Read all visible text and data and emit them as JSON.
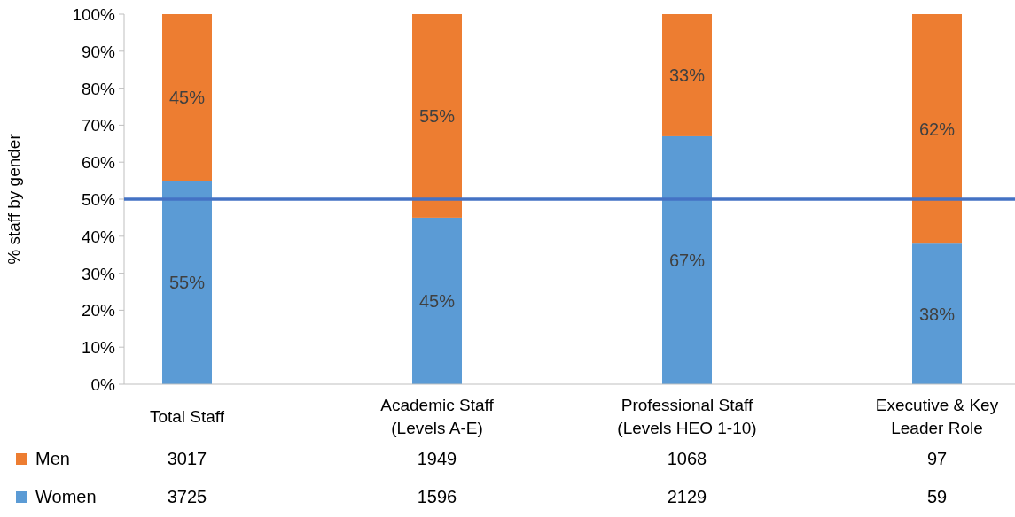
{
  "chart_data": {
    "type": "bar",
    "stacked": true,
    "ylabel": "% staff by gender",
    "categories": [
      "Total Staff",
      "Academic Staff\n(Levels A-E)",
      "Professional Staff\n(Levels HEO 1-10)",
      "Executive & Key\nLeader Role"
    ],
    "series": [
      {
        "name": "Women",
        "color": "#5b9bd5",
        "values": [
          55,
          45,
          67,
          38
        ],
        "value_labels": [
          "55%",
          "45%",
          "67%",
          "38%"
        ]
      },
      {
        "name": "Men",
        "color": "#ed7d31",
        "values": [
          45,
          55,
          33,
          62
        ],
        "value_labels": [
          "45%",
          "55%",
          "33%",
          "62%"
        ]
      }
    ],
    "ylim": [
      0,
      100
    ],
    "yticks": [
      {
        "value": 0,
        "label": "0%"
      },
      {
        "value": 10,
        "label": "10%"
      },
      {
        "value": 20,
        "label": "20%"
      },
      {
        "value": 30,
        "label": "30%"
      },
      {
        "value": 40,
        "label": "40%"
      },
      {
        "value": 50,
        "label": "50%"
      },
      {
        "value": 60,
        "label": "60%"
      },
      {
        "value": 70,
        "label": "70%"
      },
      {
        "value": 80,
        "label": "80%"
      },
      {
        "value": 90,
        "label": "90%"
      },
      {
        "value": 100,
        "label": "100%"
      }
    ],
    "ref_lines": [
      {
        "axis": "y",
        "value": 50,
        "color": "#4472c4"
      }
    ],
    "legend": "bottom",
    "annotations": [
      "3017",
      "1949",
      "1068",
      "97",
      "3725",
      "1596",
      "2129",
      "59"
    ]
  }
}
